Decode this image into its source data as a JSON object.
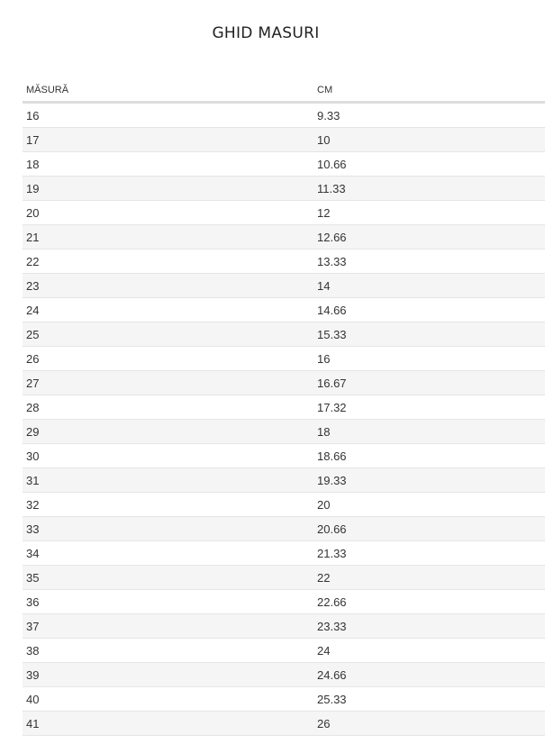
{
  "title": "GHID MASURI",
  "table": {
    "headers": [
      "MĂSURĂ",
      "CM"
    ],
    "rows": [
      [
        "16",
        "9.33"
      ],
      [
        "17",
        "10"
      ],
      [
        "18",
        "10.66"
      ],
      [
        "19",
        "11.33"
      ],
      [
        "20",
        "12"
      ],
      [
        "21",
        "12.66"
      ],
      [
        "22",
        "13.33"
      ],
      [
        "23",
        "14"
      ],
      [
        "24",
        "14.66"
      ],
      [
        "25",
        "15.33"
      ],
      [
        "26",
        "16"
      ],
      [
        "27",
        "16.67"
      ],
      [
        "28",
        "17.32"
      ],
      [
        "29",
        "18"
      ],
      [
        "30",
        "18.66"
      ],
      [
        "31",
        "19.33"
      ],
      [
        "32",
        "20"
      ],
      [
        "33",
        "20.66"
      ],
      [
        "34",
        "21.33"
      ],
      [
        "35",
        "22"
      ],
      [
        "36",
        "22.66"
      ],
      [
        "37",
        "23.33"
      ],
      [
        "38",
        "24"
      ],
      [
        "39",
        "24.66"
      ],
      [
        "40",
        "25.33"
      ],
      [
        "41",
        "26"
      ]
    ]
  },
  "colors": {
    "stripe": "#f5f5f5",
    "header_border": "#dddddd"
  }
}
